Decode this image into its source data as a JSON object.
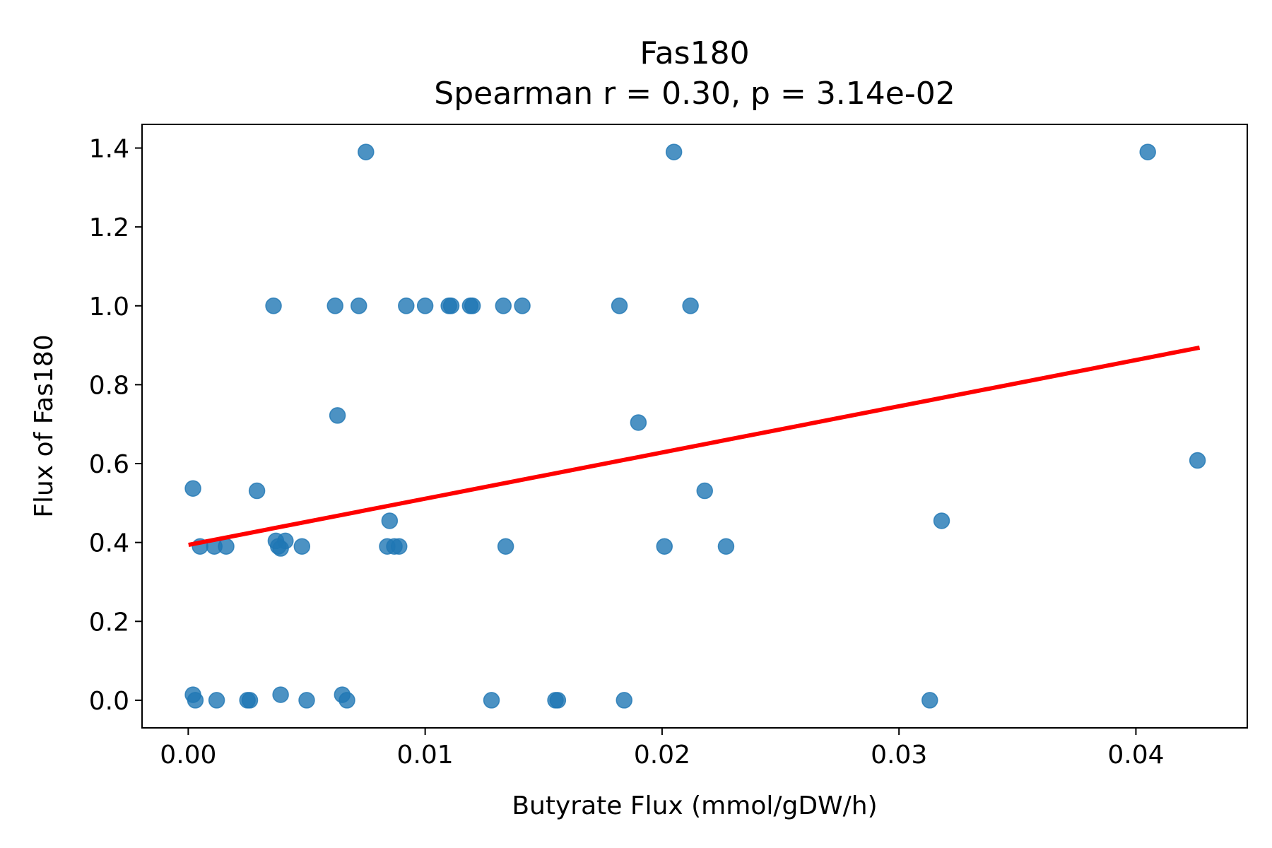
{
  "chart_data": {
    "type": "scatter",
    "title": "Fas180",
    "subtitle": "Spearman r = 0.30, p = 3.14e-02",
    "xlabel": "Butyrate Flux (mmol/gDW/h)",
    "ylabel": "Flux of Fas180",
    "xlim": [
      -0.00195,
      0.0447
    ],
    "ylim": [
      -0.07,
      1.46
    ],
    "x_ticks": [
      0.0,
      0.01,
      0.02,
      0.03,
      0.04
    ],
    "x_tick_labels": [
      "0.00",
      "0.01",
      "0.02",
      "0.03",
      "0.04"
    ],
    "y_ticks": [
      0.0,
      0.2,
      0.4,
      0.6,
      0.8,
      1.0,
      1.2,
      1.4
    ],
    "y_tick_labels": [
      "0.0",
      "0.2",
      "0.4",
      "0.6",
      "0.8",
      "1.0",
      "1.2",
      "1.4"
    ],
    "grid": false,
    "legend": "none",
    "colors": {
      "points": "#1f77b4",
      "fit_line": "#ff0000"
    },
    "points": [
      {
        "x": 0.0075,
        "y": 1.39
      },
      {
        "x": 0.0205,
        "y": 1.39
      },
      {
        "x": 0.0405,
        "y": 1.39
      },
      {
        "x": 0.0036,
        "y": 1.0
      },
      {
        "x": 0.0062,
        "y": 1.0
      },
      {
        "x": 0.0072,
        "y": 1.0
      },
      {
        "x": 0.0092,
        "y": 1.0
      },
      {
        "x": 0.01,
        "y": 1.0
      },
      {
        "x": 0.011,
        "y": 1.0
      },
      {
        "x": 0.0111,
        "y": 1.0
      },
      {
        "x": 0.0119,
        "y": 1.0
      },
      {
        "x": 0.012,
        "y": 1.0
      },
      {
        "x": 0.0133,
        "y": 1.0
      },
      {
        "x": 0.0141,
        "y": 1.0
      },
      {
        "x": 0.0182,
        "y": 1.0
      },
      {
        "x": 0.0212,
        "y": 1.0
      },
      {
        "x": 0.0063,
        "y": 0.722
      },
      {
        "x": 0.019,
        "y": 0.704
      },
      {
        "x": 0.0426,
        "y": 0.608
      },
      {
        "x": 0.0002,
        "y": 0.537
      },
      {
        "x": 0.0029,
        "y": 0.531
      },
      {
        "x": 0.0218,
        "y": 0.531
      },
      {
        "x": 0.0085,
        "y": 0.455
      },
      {
        "x": 0.0318,
        "y": 0.455
      },
      {
        "x": 0.0037,
        "y": 0.404
      },
      {
        "x": 0.0041,
        "y": 0.404
      },
      {
        "x": 0.0005,
        "y": 0.39
      },
      {
        "x": 0.0011,
        "y": 0.39
      },
      {
        "x": 0.0016,
        "y": 0.39
      },
      {
        "x": 0.0038,
        "y": 0.39
      },
      {
        "x": 0.0039,
        "y": 0.385
      },
      {
        "x": 0.0048,
        "y": 0.39
      },
      {
        "x": 0.0084,
        "y": 0.39
      },
      {
        "x": 0.0087,
        "y": 0.39
      },
      {
        "x": 0.0089,
        "y": 0.39
      },
      {
        "x": 0.0134,
        "y": 0.39
      },
      {
        "x": 0.0201,
        "y": 0.39
      },
      {
        "x": 0.0227,
        "y": 0.39
      },
      {
        "x": 0.0002,
        "y": 0.014
      },
      {
        "x": 0.0003,
        "y": 0.0
      },
      {
        "x": 0.0012,
        "y": 0.0
      },
      {
        "x": 0.0025,
        "y": 0.0
      },
      {
        "x": 0.0026,
        "y": 0.0
      },
      {
        "x": 0.0039,
        "y": 0.014
      },
      {
        "x": 0.005,
        "y": 0.0
      },
      {
        "x": 0.0065,
        "y": 0.014
      },
      {
        "x": 0.0067,
        "y": 0.0
      },
      {
        "x": 0.0128,
        "y": 0.0
      },
      {
        "x": 0.0155,
        "y": 0.0
      },
      {
        "x": 0.0156,
        "y": 0.0
      },
      {
        "x": 0.0184,
        "y": 0.0
      },
      {
        "x": 0.0313,
        "y": 0.0
      }
    ],
    "fit_line": {
      "x": [
        0.0001,
        0.0426
      ],
      "y": [
        0.395,
        0.893
      ]
    }
  }
}
